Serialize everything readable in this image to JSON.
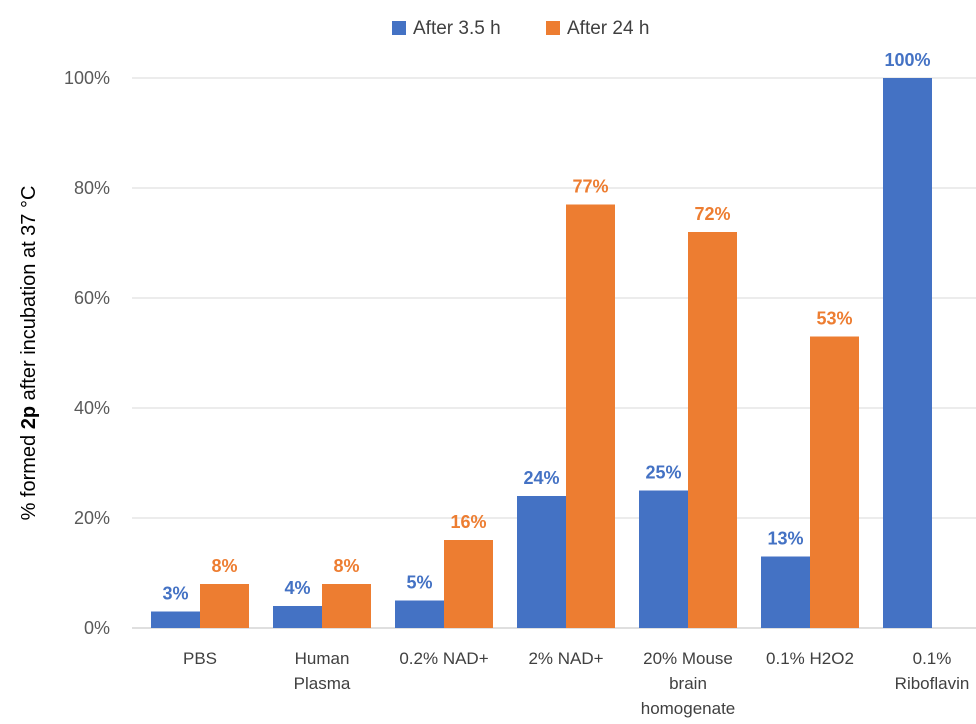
{
  "chart_data": {
    "type": "bar",
    "categories": [
      [
        "PBS"
      ],
      [
        "Human",
        "Plasma"
      ],
      [
        "0.2% NAD+"
      ],
      [
        "2% NAD+"
      ],
      [
        "20% Mouse",
        "brain",
        "homogenate"
      ],
      [
        "0.1% H2O2"
      ],
      [
        "0.1%",
        "Riboflavin"
      ]
    ],
    "series": [
      {
        "name": "After 3.5 h",
        "color": "#4472C4",
        "values": [
          3,
          4,
          5,
          24,
          25,
          13,
          100
        ],
        "labels": [
          "3%",
          "4%",
          "5%",
          "24%",
          "25%",
          "13%",
          "100%"
        ]
      },
      {
        "name": "After 24 h",
        "color": "#ED7D31",
        "values": [
          8,
          8,
          16,
          77,
          72,
          53,
          null
        ],
        "labels": [
          "8%",
          "8%",
          "16%",
          "77%",
          "72%",
          "53%",
          null
        ]
      }
    ],
    "ylabel": {
      "before": "% formed ",
      "bold": "2p",
      "after": " after incubation at 37 °C"
    },
    "ylim": [
      0,
      100
    ],
    "yticks": [
      0,
      20,
      40,
      60,
      80,
      100
    ],
    "ytick_labels": [
      "0%",
      "20%",
      "40%",
      "60%",
      "80%",
      "100%"
    ],
    "grid": true,
    "legend_position": "top"
  }
}
